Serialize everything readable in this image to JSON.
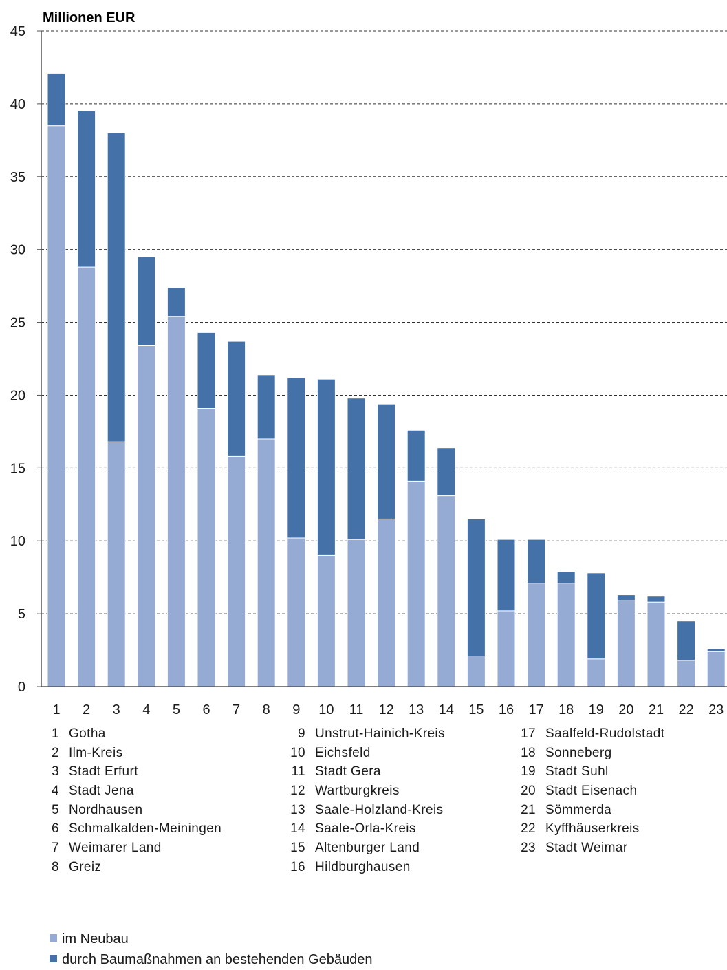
{
  "chart_data": {
    "type": "bar",
    "stacked": true,
    "y_unit_label": "Millionen EUR",
    "ylim": [
      0,
      45
    ],
    "yticks": [
      0,
      5,
      10,
      15,
      20,
      25,
      30,
      35,
      40,
      45
    ],
    "grid": "horizontal-dashed",
    "legend_placement": "bottom-left",
    "categories": [
      "1",
      "2",
      "3",
      "4",
      "5",
      "6",
      "7",
      "8",
      "9",
      "10",
      "11",
      "12",
      "13",
      "14",
      "15",
      "16",
      "17",
      "18",
      "19",
      "20",
      "21",
      "22",
      "23"
    ],
    "series": [
      {
        "name": "im Neubau",
        "color": "#95abd4",
        "values": [
          38.5,
          28.8,
          16.8,
          23.4,
          25.4,
          19.1,
          15.8,
          17.0,
          10.2,
          9.0,
          10.1,
          11.5,
          14.1,
          13.1,
          2.1,
          5.2,
          7.1,
          7.1,
          1.9,
          5.9,
          5.8,
          1.8,
          2.4
        ]
      },
      {
        "name": "durch Baumaßnahmen an bestehenden Gebäuden",
        "color": "#4472a8",
        "values": [
          3.6,
          10.7,
          21.2,
          6.1,
          2.0,
          5.2,
          7.9,
          4.4,
          11.0,
          12.1,
          9.7,
          7.9,
          3.5,
          3.3,
          9.4,
          4.9,
          3.0,
          0.8,
          5.9,
          0.4,
          0.4,
          2.7,
          0.2
        ]
      }
    ]
  },
  "key": [
    {
      "num": "1",
      "name": "Gotha"
    },
    {
      "num": "2",
      "name": "Ilm-Kreis"
    },
    {
      "num": "3",
      "name": "Stadt Erfurt"
    },
    {
      "num": "4",
      "name": "Stadt Jena"
    },
    {
      "num": "5",
      "name": "Nordhausen"
    },
    {
      "num": "6",
      "name": "Schmalkalden-Meiningen"
    },
    {
      "num": "7",
      "name": "Weimarer Land"
    },
    {
      "num": "8",
      "name": "Greiz"
    },
    {
      "num": "9",
      "name": "Unstrut-Hainich-Kreis"
    },
    {
      "num": "10",
      "name": "Eichsfeld"
    },
    {
      "num": "11",
      "name": "Stadt Gera"
    },
    {
      "num": "12",
      "name": "Wartburgkreis"
    },
    {
      "num": "13",
      "name": "Saale-Holzland-Kreis"
    },
    {
      "num": "14",
      "name": "Saale-Orla-Kreis"
    },
    {
      "num": "15",
      "name": "Altenburger Land"
    },
    {
      "num": "16",
      "name": "Hildburghausen"
    },
    {
      "num": "17",
      "name": "Saalfeld-Rudolstadt"
    },
    {
      "num": "18",
      "name": "Sonneberg"
    },
    {
      "num": "19",
      "name": "Stadt Suhl"
    },
    {
      "num": "20",
      "name": "Stadt Eisenach"
    },
    {
      "num": "21",
      "name": "Sömmerda"
    },
    {
      "num": "22",
      "name": "Kyffhäuserkreis"
    },
    {
      "num": "23",
      "name": "Stadt Weimar"
    }
  ]
}
